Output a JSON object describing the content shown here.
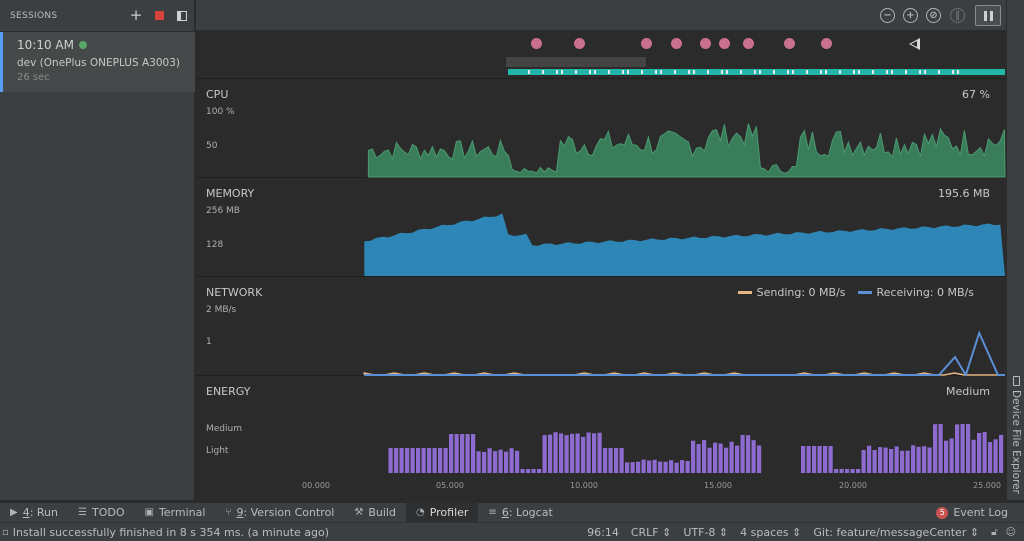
{
  "sessions": {
    "title": "SESSIONS",
    "add_icon": "plus-icon",
    "stop_icon": "stop-icon",
    "layout_icon": "layout-icon",
    "session": {
      "time": "10:10 AM",
      "device": "dev (OnePlus ONEPLUS A3003)",
      "duration": "26 sec",
      "status_color": "#59a869"
    }
  },
  "toolbar": {
    "icons": [
      "zoom-out-icon",
      "zoom-in-icon",
      "reset-zoom-icon",
      "attach-live-icon",
      "pause-icon"
    ]
  },
  "events": {
    "dot_color": "#c9708e",
    "dot_times": [
      8.2,
      9.8,
      12.3,
      13.4,
      14.5,
      15.2,
      16.1,
      17.6,
      19.0
    ],
    "activity_color": "#21b6a8"
  },
  "cpu": {
    "title": "CPU",
    "value": "67 %",
    "axis": [
      "100 %",
      "50"
    ],
    "color": "#3a7d5b"
  },
  "memory": {
    "title": "MEMORY",
    "value": "195.6 MB",
    "axis": [
      "256 MB",
      "128"
    ],
    "color": "#2e86b6"
  },
  "network": {
    "title": "NETWORK",
    "axis": [
      "2 MB/s",
      "1"
    ],
    "legend": [
      {
        "label": "Sending: 0 MB/s",
        "color": "#e5b683"
      },
      {
        "label": "Receiving: 0 MB/s",
        "color": "#5b8fd6"
      }
    ]
  },
  "energy": {
    "title": "ENERGY",
    "value": "Medium",
    "axis": [
      "Medium",
      "Light"
    ],
    "color": "#8e6bd0"
  },
  "time_axis": {
    "ticks": [
      "00.000",
      "05.000",
      "10.000",
      "15.000",
      "20.000",
      "25.000"
    ]
  },
  "right_strip": {
    "label": "Device File Explorer",
    "icon": "device-icon"
  },
  "tool_windows": [
    {
      "key": "4",
      "label": ": Run",
      "icon": "run-icon"
    },
    {
      "key": "",
      "label": "TODO",
      "icon": "todo-icon"
    },
    {
      "key": "",
      "label": "Terminal",
      "icon": "terminal-icon"
    },
    {
      "key": "9",
      "label": ": Version Control",
      "icon": "vcs-icon"
    },
    {
      "key": "",
      "label": "Build",
      "icon": "build-icon"
    },
    {
      "key": "",
      "label": "Profiler",
      "icon": "profiler-icon",
      "active": true
    },
    {
      "key": "6",
      "label": ": Logcat",
      "icon": "logcat-icon"
    }
  ],
  "event_log": {
    "label": "Event Log",
    "count": "5"
  },
  "status": {
    "message": "Install successfully finished in 8 s 354 ms. (a minute ago)",
    "position": "96:14",
    "line_sep": "CRLF",
    "encoding": "UTF-8",
    "indent": "4 spaces",
    "git": "Git: feature/messageCenter",
    "lock_icon": "lock-icon",
    "inspector_icon": "inspector-icon"
  }
}
